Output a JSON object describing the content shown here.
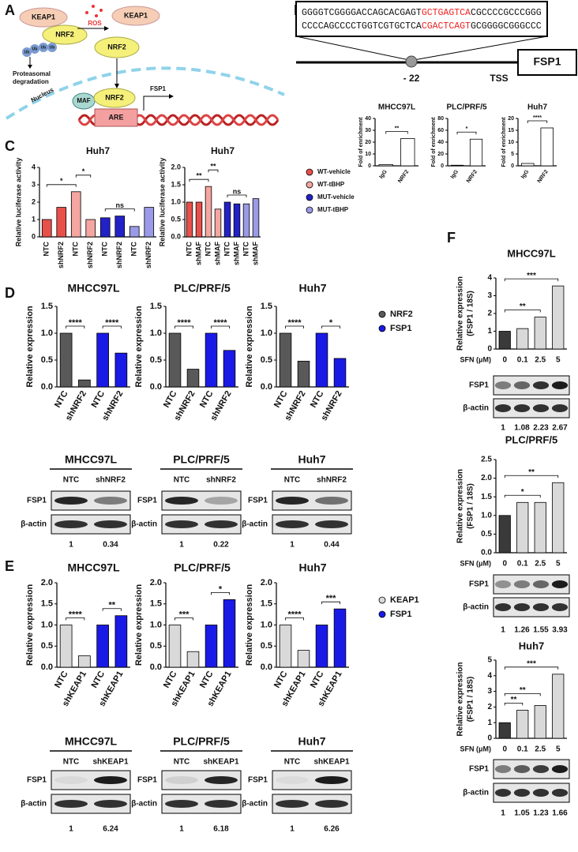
{
  "panel_labels": [
    "A",
    "B",
    "C",
    "D",
    "E",
    "F"
  ],
  "diagram_a": {
    "keap1_top": "KEAP1",
    "nrf2_top": "NRF2",
    "ub": "Ub",
    "degradation": [
      "Proteasomal",
      "degradation"
    ],
    "ros": "ROS",
    "keap1_right": "KEAP1",
    "nrf2_right": "NRF2",
    "nucleus": "Nucleus",
    "maf": "MAF",
    "nrf2_dna": "NRF2",
    "are": "ARE",
    "fsp1": "FSP1"
  },
  "promoter_b": {
    "seq_top": [
      "GGGGTCGGGGACCAGCACGAGT",
      "GCTGAGTCA",
      "CGCCCCGCCCGGG"
    ],
    "seq_bottom": [
      "CCCCAGCCCCTGGTCGTGCTCA",
      "CGACTCAGT",
      "GCGGGGCGGGCCC"
    ],
    "position": "- 22",
    "tss": "TSS",
    "gene": "FSP1"
  },
  "chart_data": [
    {
      "type": "bar",
      "title": "MHCC97L",
      "ylabel": "Fold of enrichment",
      "categories": [
        "IgG",
        "NRF2"
      ],
      "values": [
        1,
        23
      ],
      "colors": [
        "#ffffff",
        "#ffffff"
      ],
      "ylim": [
        0,
        40
      ],
      "yticks": [
        0,
        10,
        20,
        30,
        40
      ],
      "annotations": [
        {
          "text": "**",
          "span": [
            0,
            1
          ]
        }
      ]
    },
    {
      "type": "bar",
      "title": "PLC/PRF/5",
      "ylabel": "Fold of enrichment",
      "categories": [
        "IgG",
        "NRF2"
      ],
      "values": [
        1,
        45
      ],
      "colors": [
        "#ffffff",
        "#ffffff"
      ],
      "ylim": [
        0,
        80
      ],
      "yticks": [
        0,
        20,
        40,
        60,
        80
      ],
      "annotations": [
        {
          "text": "*",
          "span": [
            0,
            1
          ]
        }
      ]
    },
    {
      "type": "bar",
      "title": "Huh7",
      "ylabel": "Fold of enrichment",
      "categories": [
        "IgG",
        "NRF2"
      ],
      "values": [
        1,
        16
      ],
      "colors": [
        "#ffffff",
        "#ffffff"
      ],
      "ylim": [
        0,
        20
      ],
      "yticks": [
        0,
        5,
        10,
        15,
        20
      ],
      "annotations": [
        {
          "text": "****",
          "span": [
            0,
            1
          ]
        }
      ]
    },
    {
      "type": "bar",
      "title": "Huh7",
      "ylabel": "Relative luciferase activity",
      "categories": [
        "NTC",
        "shNRF2",
        "NTC",
        "shNRF2",
        "NTC",
        "shNRF2",
        "NTC",
        "shNRF2"
      ],
      "series": [
        {
          "name": "WT-vehicle",
          "color": "#e8504a",
          "values": [
            1.0,
            1.7,
            null,
            null,
            null,
            null,
            null,
            null
          ]
        },
        {
          "name": "WT-tBHP",
          "color": "#f4a6a0",
          "values": [
            null,
            null,
            2.6,
            1.0,
            null,
            null,
            null,
            null
          ]
        },
        {
          "name": "MUT-vehicle",
          "color": "#2222c8",
          "values": [
            null,
            null,
            null,
            null,
            1.1,
            1.2,
            null,
            null
          ]
        },
        {
          "name": "MUT-tBHP",
          "color": "#9a9ae6",
          "values": [
            null,
            null,
            null,
            null,
            null,
            null,
            0.6,
            1.7
          ]
        }
      ],
      "ylim": [
        0,
        4
      ],
      "yticks": [
        0,
        1,
        2,
        3,
        4
      ],
      "legend": true,
      "annotations": [
        {
          "text": "*",
          "span": [
            0,
            2
          ]
        },
        {
          "text": "*",
          "span": [
            2,
            3
          ]
        },
        {
          "text": "ns",
          "span": [
            4,
            6
          ]
        }
      ]
    },
    {
      "type": "bar",
      "title": "Huh7",
      "ylabel": "Relative luciferase activity",
      "categories": [
        "NTC",
        "shMAF",
        "NTC",
        "shMAF",
        "NTC",
        "shMAF",
        "NTC",
        "shMAF"
      ],
      "series": [
        {
          "color": "#e8504a",
          "values": [
            1.0,
            1.0,
            null,
            null,
            null,
            null,
            null,
            null
          ]
        },
        {
          "color": "#f4a6a0",
          "values": [
            null,
            null,
            1.45,
            0.8,
            null,
            null,
            null,
            null
          ]
        },
        {
          "color": "#2222c8",
          "values": [
            null,
            null,
            null,
            null,
            1.0,
            0.95,
            null,
            null
          ]
        },
        {
          "color": "#9a9ae6",
          "values": [
            null,
            null,
            null,
            null,
            null,
            null,
            0.95,
            1.1
          ]
        }
      ],
      "ylim": [
        0,
        2
      ],
      "yticks": [
        {
          "value": 0,
          "label": "0.0"
        },
        {
          "value": 0.5,
          "label": "0.5"
        },
        {
          "value": 1,
          "label": "1.0"
        },
        {
          "value": 1.5,
          "label": "1.5"
        },
        {
          "value": 2,
          "label": "2.0"
        }
      ],
      "annotations": [
        {
          "text": "**",
          "span": [
            0,
            2
          ]
        },
        {
          "text": "**",
          "span": [
            2,
            3
          ]
        },
        {
          "text": "ns",
          "span": [
            4,
            6
          ]
        }
      ]
    },
    {
      "type": "bar",
      "title": "MHCC97L",
      "ylabel": "Relative expression",
      "categories": [
        "NTC",
        "shNRF2",
        "NTC",
        "shNRF2"
      ],
      "series": [
        {
          "color": "#595959",
          "values": [
            1,
            0.13,
            null,
            null
          ]
        },
        {
          "color": "#1a1ae6",
          "values": [
            null,
            null,
            1,
            0.63
          ]
        }
      ],
      "ylim": [
        0,
        1.5
      ],
      "yticks": [
        {
          "value": 0,
          "label": "0.0"
        },
        {
          "value": 0.5,
          "label": "0.5"
        },
        {
          "value": 1,
          "label": "1.0"
        },
        {
          "value": 1.5,
          "label": "1.5"
        }
      ],
      "annotations": [
        {
          "text": "****",
          "span": [
            0,
            1
          ]
        },
        {
          "text": "****",
          "span": [
            2,
            3
          ]
        }
      ]
    },
    {
      "type": "bar",
      "title": "PLC/PRF/5",
      "ylabel": "Relative expression",
      "categories": [
        "NTC",
        "shNRF2",
        "NTC",
        "shNRF2"
      ],
      "series": [
        {
          "color": "#595959",
          "values": [
            1,
            0.33,
            null,
            null
          ]
        },
        {
          "color": "#1a1ae6",
          "values": [
            null,
            null,
            1,
            0.68
          ]
        }
      ],
      "ylim": [
        0,
        1.5
      ],
      "yticks": [
        {
          "value": 0,
          "label": "0.0"
        },
        {
          "value": 0.5,
          "label": "0.5"
        },
        {
          "value": 1,
          "label": "1.0"
        },
        {
          "value": 1.5,
          "label": "1.5"
        }
      ],
      "annotations": [
        {
          "text": "****",
          "span": [
            0,
            1
          ]
        },
        {
          "text": "****",
          "span": [
            2,
            3
          ]
        }
      ]
    },
    {
      "type": "bar",
      "title": "Huh7",
      "ylabel": "Relative expression",
      "categories": [
        "NTC",
        "shNRF2",
        "NTC",
        "shNRF2"
      ],
      "series": [
        {
          "name": "NRF2",
          "color": "#595959",
          "values": [
            1,
            0.48,
            null,
            null
          ]
        },
        {
          "name": "FSP1",
          "color": "#1a1ae6",
          "values": [
            null,
            null,
            1,
            0.53
          ]
        }
      ],
      "ylim": [
        0,
        1.5
      ],
      "yticks": [
        {
          "value": 0,
          "label": "0.0"
        },
        {
          "value": 0.5,
          "label": "0.5"
        },
        {
          "value": 1,
          "label": "1.0"
        },
        {
          "value": 1.5,
          "label": "1.5"
        }
      ],
      "legend": true,
      "annotations": [
        {
          "text": "****",
          "span": [
            0,
            1
          ]
        },
        {
          "text": "*",
          "span": [
            2,
            3
          ]
        }
      ]
    },
    {
      "type": "bar",
      "title": "MHCC97L",
      "ylabel": "Relative expression",
      "categories": [
        "NTC",
        "shKEAP1",
        "NTC",
        "shKEAP1"
      ],
      "series": [
        {
          "color": "#d9d9d9",
          "values": [
            1,
            0.27,
            null,
            null
          ]
        },
        {
          "color": "#1a1ae6",
          "values": [
            null,
            null,
            1,
            1.22
          ]
        }
      ],
      "ylim": [
        0,
        2
      ],
      "yticks": [
        {
          "value": 0,
          "label": "0.0"
        },
        {
          "value": 0.5,
          "label": "0.5"
        },
        {
          "value": 1,
          "label": "1.0"
        },
        {
          "value": 1.5,
          "label": "1.5"
        },
        {
          "value": 2,
          "label": "2.0"
        }
      ],
      "annotations": [
        {
          "text": "****",
          "span": [
            0,
            1
          ]
        },
        {
          "text": "**",
          "span": [
            2,
            3
          ]
        }
      ]
    },
    {
      "type": "bar",
      "title": "PLC/PRF/5",
      "ylabel": "Relative expression",
      "categories": [
        "NTC",
        "shKEAP1",
        "NTC",
        "shKEAP1"
      ],
      "series": [
        {
          "color": "#d9d9d9",
          "values": [
            1,
            0.37,
            null,
            null
          ]
        },
        {
          "color": "#1a1ae6",
          "values": [
            null,
            null,
            1,
            1.6
          ]
        }
      ],
      "ylim": [
        0,
        2
      ],
      "yticks": [
        {
          "value": 0,
          "label": "0.0"
        },
        {
          "value": 0.5,
          "label": "0.5"
        },
        {
          "value": 1,
          "label": "1.0"
        },
        {
          "value": 1.5,
          "label": "1.5"
        },
        {
          "value": 2,
          "label": "2.0"
        }
      ],
      "annotations": [
        {
          "text": "***",
          "span": [
            0,
            1
          ]
        },
        {
          "text": "*",
          "span": [
            2,
            3
          ]
        }
      ]
    },
    {
      "type": "bar",
      "title": "Huh7",
      "ylabel": "Relative expression",
      "categories": [
        "NTC",
        "shKEAP1",
        "NTC",
        "shKEAP1"
      ],
      "series": [
        {
          "name": "KEAP1",
          "color": "#d9d9d9",
          "values": [
            1,
            0.4,
            null,
            null
          ]
        },
        {
          "name": "FSP1",
          "color": "#1a1ae6",
          "values": [
            null,
            null,
            1,
            1.38
          ]
        }
      ],
      "ylim": [
        0,
        2
      ],
      "yticks": [
        {
          "value": 0,
          "label": "0.0"
        },
        {
          "value": 0.5,
          "label": "0.5"
        },
        {
          "value": 1,
          "label": "1.0"
        },
        {
          "value": 1.5,
          "label": "1.5"
        },
        {
          "value": 2,
          "label": "2.0"
        }
      ],
      "legend": true,
      "annotations": [
        {
          "text": "****",
          "span": [
            0,
            1
          ]
        },
        {
          "text": "***",
          "span": [
            2,
            3
          ]
        }
      ]
    },
    {
      "type": "bar",
      "title": "MHCC97L",
      "ylabel": [
        "Relative expression",
        "(FSP1 / 18S)"
      ],
      "xlabel": "SFN (μM)",
      "categories": [
        "0",
        "0.1",
        "2.5",
        "5"
      ],
      "values": [
        1,
        1.15,
        1.8,
        3.55
      ],
      "colors": [
        "#3a3a3a",
        "#d9d9d9",
        "#d9d9d9",
        "#d9d9d9"
      ],
      "ylim": [
        0,
        4
      ],
      "yticks": [
        0,
        1,
        2,
        3,
        4
      ],
      "annotations": [
        {
          "text": "**",
          "span": [
            0,
            2
          ]
        },
        {
          "text": "***",
          "span": [
            0,
            3
          ]
        }
      ]
    },
    {
      "type": "bar",
      "title": "PLC/PRF/5",
      "ylabel": [
        "Relative expression",
        "(FSP1 / 18S)"
      ],
      "xlabel": "SFN (μM)",
      "categories": [
        "0",
        "0.1",
        "2.5",
        "5"
      ],
      "values": [
        1,
        1.35,
        1.35,
        1.88
      ],
      "colors": [
        "#3a3a3a",
        "#d9d9d9",
        "#d9d9d9",
        "#d9d9d9"
      ],
      "ylim": [
        0,
        2.5
      ],
      "yticks": [
        {
          "value": 0,
          "label": "0.0"
        },
        {
          "value": 0.5,
          "label": "0.5"
        },
        {
          "value": 1,
          "label": "1.0"
        },
        {
          "value": 1.5,
          "label": "1.5"
        },
        {
          "value": 2,
          "label": "2.0"
        },
        {
          "value": 2.5,
          "label": "2.5"
        }
      ],
      "annotations": [
        {
          "text": "*",
          "span": [
            0,
            2
          ]
        },
        {
          "text": "**",
          "span": [
            0,
            3
          ]
        }
      ]
    },
    {
      "type": "bar",
      "title": "Huh7",
      "ylabel": [
        "Relative expression",
        "(FSP1 / 18S)"
      ],
      "xlabel": "SFN (μM)",
      "categories": [
        "0",
        "0.1",
        "2.5",
        "5"
      ],
      "values": [
        1,
        1.8,
        2.1,
        4.1
      ],
      "colors": [
        "#3a3a3a",
        "#d9d9d9",
        "#d9d9d9",
        "#d9d9d9"
      ],
      "ylim": [
        0,
        5
      ],
      "yticks": [
        0,
        1,
        2,
        3,
        4,
        5
      ],
      "annotations": [
        {
          "text": "**",
          "span": [
            0,
            1
          ]
        },
        {
          "text": "**",
          "span": [
            0,
            2
          ]
        },
        {
          "text": "***",
          "span": [
            0,
            3
          ]
        }
      ]
    }
  ],
  "blots": [
    {
      "title": "MHCC97L",
      "lanes": [
        "NTC",
        "shNRF2"
      ],
      "rows": [
        "FSP1",
        "β-actin"
      ],
      "quant": [
        "1",
        "0.34"
      ]
    },
    {
      "title": "PLC/PRF/5",
      "lanes": [
        "NTC",
        "shNRF2"
      ],
      "rows": [
        "FSP1",
        "β-actin"
      ],
      "quant": [
        "1",
        "0.22"
      ]
    },
    {
      "title": "Huh7",
      "lanes": [
        "NTC",
        "shNRF2"
      ],
      "rows": [
        "FSP1",
        "β-actin"
      ],
      "quant": [
        "1",
        "0.44"
      ]
    },
    {
      "title": "MHCC97L",
      "lanes": [
        "NTC",
        "shKEAP1"
      ],
      "rows": [
        "FSP1",
        "β-actin"
      ],
      "quant": [
        "1",
        "6.24"
      ]
    },
    {
      "title": "PLC/PRF/5",
      "lanes": [
        "NTC",
        "shKEAP1"
      ],
      "rows": [
        "FSP1",
        "β-actin"
      ],
      "quant": [
        "1",
        "6.18"
      ]
    },
    {
      "title": "Huh7",
      "lanes": [
        "NTC",
        "shKEAP1"
      ],
      "rows": [
        "FSP1",
        "β-actin"
      ],
      "quant": [
        "1",
        "6.26"
      ]
    },
    {
      "rows": [
        "FSP1",
        "β-actin"
      ],
      "quant": [
        "1",
        "1.08",
        "2.23",
        "2.67"
      ]
    },
    {
      "rows": [
        "FSP1",
        "β-actin"
      ],
      "quant": [
        "1",
        "1.26",
        "1.55",
        "3.93"
      ]
    },
    {
      "rows": [
        "FSP1",
        "β-actin"
      ],
      "quant": [
        "1",
        "1.05",
        "1.23",
        "1.66"
      ]
    }
  ]
}
